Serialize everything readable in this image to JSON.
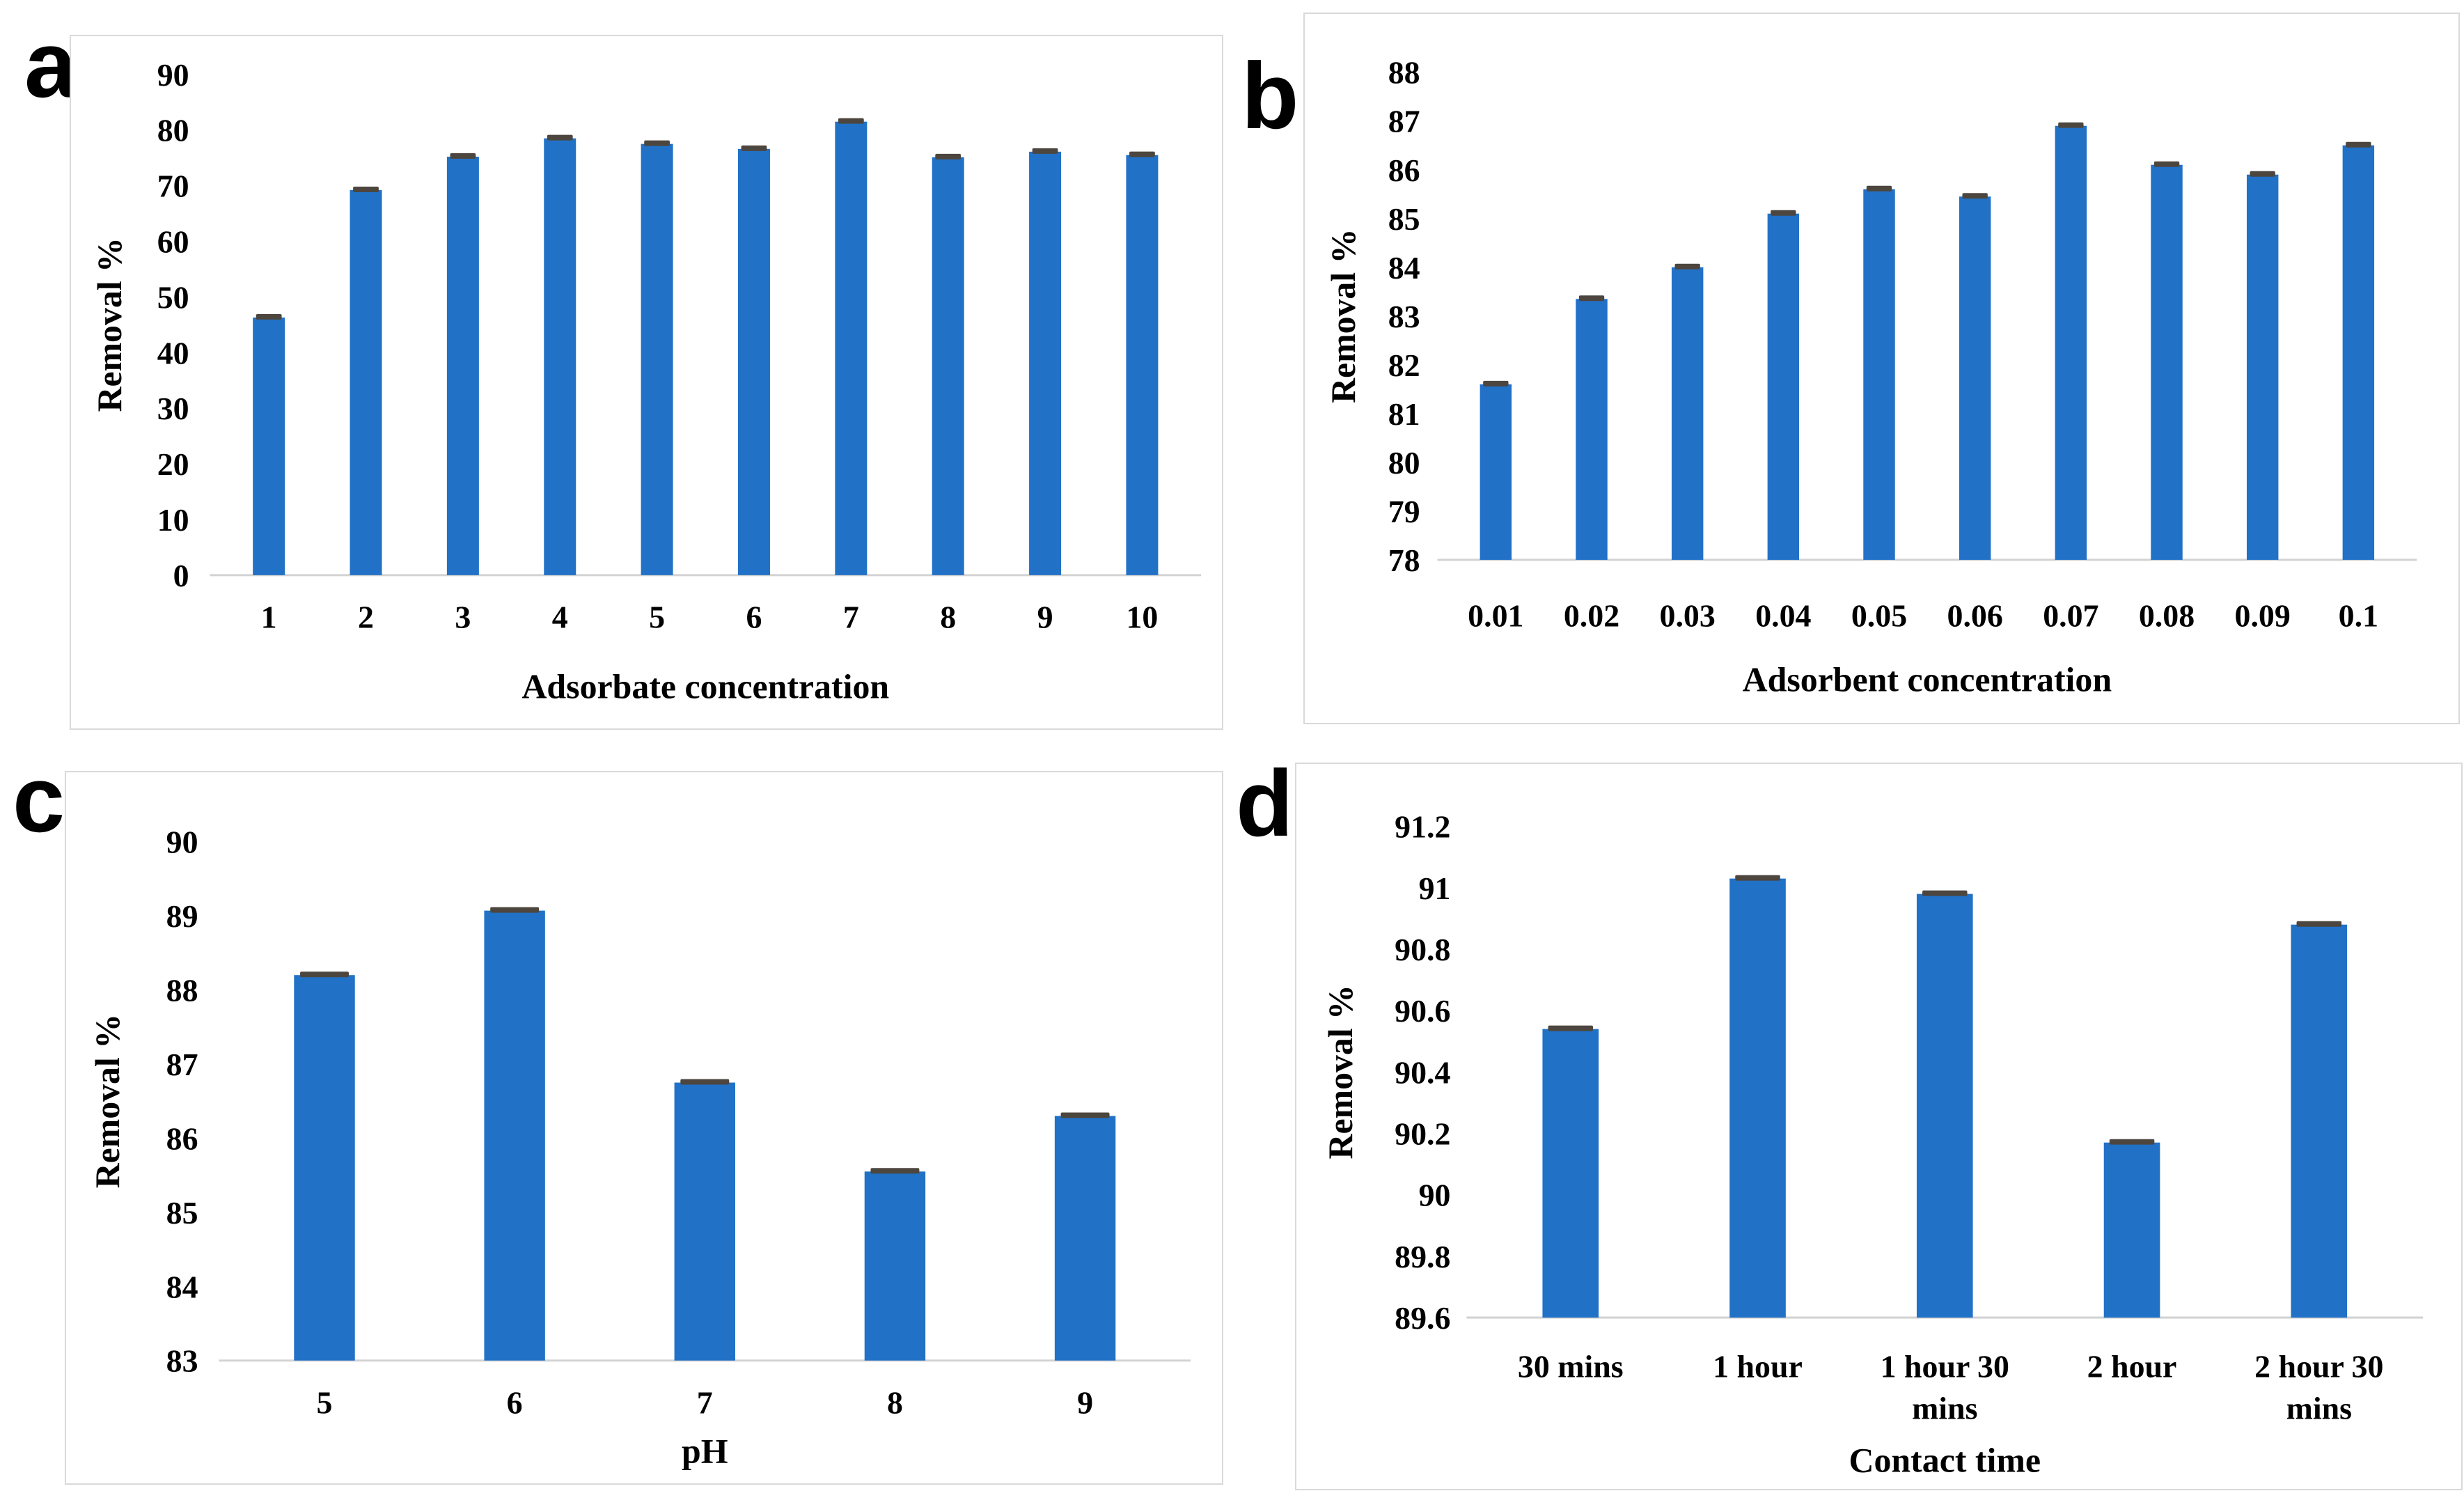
{
  "figure": {
    "background": "#ffffff",
    "bar_color": "#2171C7",
    "error_cap_color": "#4C463E",
    "axis_line_color": "#d2d2d2",
    "panel_border_color": "#d9d9d9",
    "text_color": "#000000"
  },
  "chart_data": [
    {
      "panel": "a",
      "type": "bar",
      "categories": [
        "1",
        "2",
        "3",
        "4",
        "5",
        "6",
        "7",
        "8",
        "9",
        "10"
      ],
      "values": [
        46.3,
        69.2,
        75.2,
        78.5,
        77.5,
        76.6,
        81.5,
        75.1,
        76.1,
        75.5
      ],
      "xlabel": "Adsorbate concentration",
      "ylabel": "Removal %",
      "ylim": [
        0,
        90
      ],
      "ytick_step": 10,
      "error_caps": true,
      "grid": false,
      "legend": "none"
    },
    {
      "panel": "b",
      "type": "bar",
      "categories": [
        "0.01",
        "0.02",
        "0.03",
        "0.04",
        "0.05",
        "0.06",
        "0.07",
        "0.08",
        "0.09",
        "0.1"
      ],
      "values": [
        81.6,
        83.35,
        84.0,
        85.1,
        85.6,
        85.45,
        86.9,
        86.1,
        85.9,
        86.5
      ],
      "xlabel": "Adsorbent concentration",
      "ylabel": "Removal %",
      "ylim": [
        78,
        88
      ],
      "ytick_step": 1,
      "error_caps": true,
      "grid": false,
      "legend": "none"
    },
    {
      "panel": "c",
      "type": "bar",
      "categories": [
        "5",
        "6",
        "7",
        "8",
        "9"
      ],
      "values": [
        88.2,
        89.07,
        86.75,
        85.55,
        86.3
      ],
      "xlabel": "pH",
      "ylabel": "Removal %",
      "ylim": [
        83,
        90
      ],
      "ytick_step": 1,
      "error_caps": true,
      "grid": false,
      "legend": "none"
    },
    {
      "panel": "d",
      "type": "bar",
      "categories": [
        "30 mins",
        "1 hour",
        "1 hour 30 mins",
        "2 hour",
        "2 hour 30 mins"
      ],
      "values": [
        90.54,
        91.03,
        90.98,
        90.17,
        90.88
      ],
      "xlabel": "Contact time",
      "ylabel": "Removal %",
      "ylim": [
        89.6,
        91.2
      ],
      "ytick_step": 0.2,
      "error_caps": true,
      "grid": false,
      "legend": "none"
    }
  ]
}
